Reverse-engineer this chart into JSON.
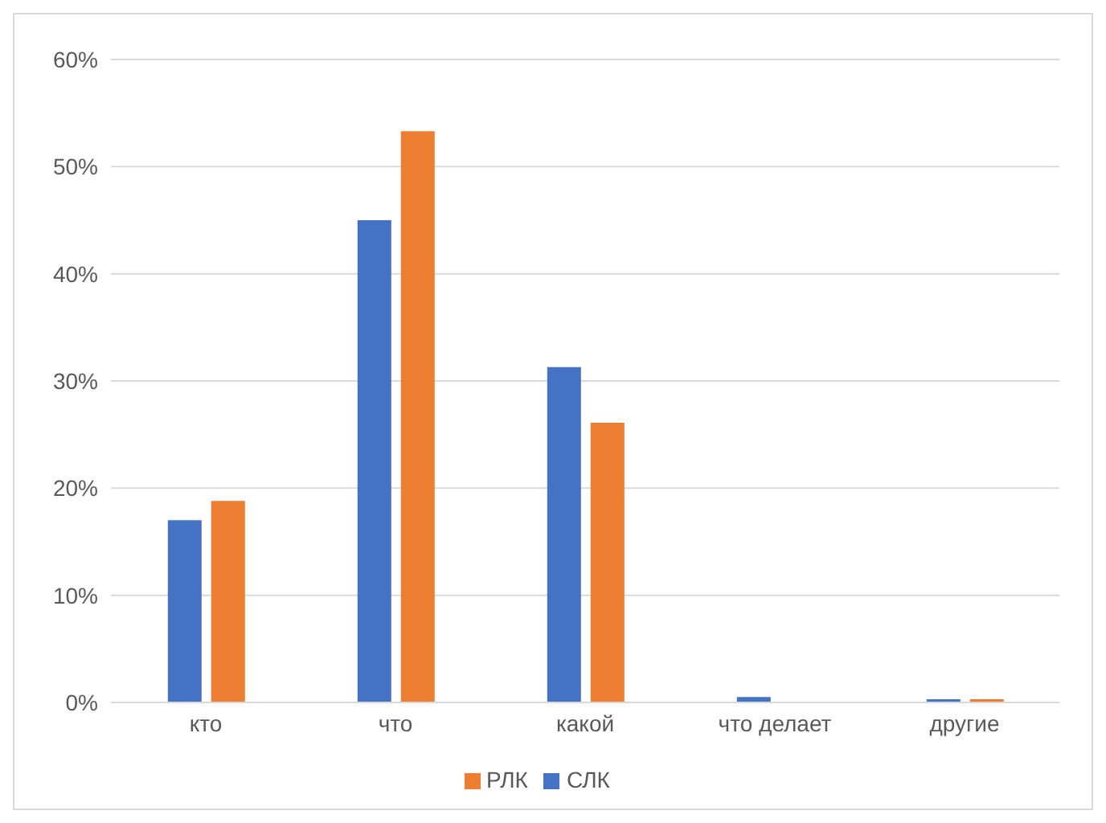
{
  "chart_data": {
    "type": "bar",
    "categories": [
      "кто",
      "что",
      "какой",
      "что делает",
      "другие"
    ],
    "series": [
      {
        "name": "СЛК",
        "color": "#4472c4",
        "values": [
          17,
          45,
          31.3,
          0.5,
          0.3
        ]
      },
      {
        "name": "РЛК",
        "color": "#ed7d31",
        "values": [
          18.8,
          53.3,
          26.1,
          0,
          0.3
        ]
      }
    ],
    "ylim": [
      0,
      60
    ],
    "yticks": [
      {
        "value": 0,
        "label": "0%"
      },
      {
        "value": 10,
        "label": "10%"
      },
      {
        "value": 20,
        "label": "20%"
      },
      {
        "value": 30,
        "label": "30%"
      },
      {
        "value": 40,
        "label": "40%"
      },
      {
        "value": 50,
        "label": "50%"
      },
      {
        "value": 60,
        "label": "60%"
      }
    ],
    "grid": "y",
    "legend": "bottom"
  }
}
